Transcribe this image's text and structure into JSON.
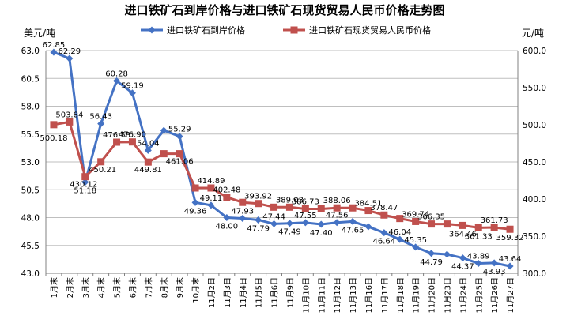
{
  "chart_data": {
    "type": "line",
    "title": "进口铁矿石到岸价格与进口铁矿石现货贸易人民币价格走势图",
    "y_left_unit": "美元/吨",
    "y_right_unit": "元/吨",
    "legend_position": "top",
    "grid": true,
    "y_left": {
      "min": 43.0,
      "max": 63.0,
      "ticks": [
        "43.0",
        "45.5",
        "48.0",
        "50.5",
        "53.0",
        "55.5",
        "58.0",
        "60.5",
        "63.0"
      ]
    },
    "y_right": {
      "min": 300.0,
      "max": 600.0,
      "ticks": [
        "300.0",
        "350.0",
        "400.0",
        "450.0",
        "500.0",
        "550.0",
        "600.0"
      ]
    },
    "categories": [
      "1月末",
      "2月末",
      "3月末",
      "4月末",
      "5月末",
      "6月末",
      "7月末",
      "8月末",
      "9月末",
      "10月末",
      "11月2日",
      "11月3日",
      "11月4日",
      "11月5日",
      "11月6日",
      "11月9日",
      "11月10日",
      "11月11日",
      "11月12日",
      "11月13日",
      "11月16日",
      "11月17日",
      "11月18日",
      "11月19日",
      "11月20日",
      "11月23日",
      "11月24日",
      "11月25日",
      "11月26日",
      "11月27日"
    ],
    "series": [
      {
        "name": "进口铁矿石到岸价格",
        "axis": "left",
        "color": "#4472C4",
        "marker": "diamond",
        "values": [
          62.85,
          62.29,
          51.18,
          56.43,
          60.28,
          59.19,
          54.04,
          55.83,
          55.29,
          49.36,
          49.11,
          48.0,
          47.93,
          47.79,
          47.44,
          47.49,
          47.55,
          47.4,
          47.56,
          47.65,
          47.18,
          46.64,
          46.04,
          45.35,
          44.79,
          44.7,
          44.37,
          43.89,
          43.93,
          43.64
        ],
        "labels": [
          "62.85",
          "62.29",
          "51.18",
          "56.43",
          "60.28",
          "59.19",
          "54.04",
          "",
          "55.29",
          "49.36",
          "49.11",
          "48.00",
          "47.93",
          "47.79",
          "47.44",
          "47.49",
          "47.55",
          "47.40",
          "47.56",
          "47.65",
          "",
          "46.64",
          "46.04",
          "45.35",
          "44.79",
          "",
          "44.37",
          "43.89",
          "43.93",
          "43.64"
        ]
      },
      {
        "name": "进口铁矿石现货贸易人民币价格",
        "axis": "right",
        "color": "#C0504D",
        "marker": "square",
        "values": [
          500.18,
          503.84,
          430.12,
          450.21,
          476.58,
          476.9,
          449.81,
          461.06,
          461.06,
          414.89,
          414.89,
          402.48,
          395.5,
          393.92,
          389.03,
          389.03,
          386.73,
          386.73,
          388.06,
          388.06,
          384.51,
          378.47,
          373.8,
          369.74,
          366.35,
          366.35,
          364.46,
          361.33,
          361.73,
          359.32
        ],
        "labels": [
          "500.18",
          "503.84",
          "430.12",
          "450.21",
          "476.58",
          "476.90",
          "449.81",
          "",
          "461.06",
          "",
          "414.89",
          "402.48",
          "",
          "393.92",
          "",
          "389.03",
          "386.73",
          "",
          "388.06",
          "",
          "384.51",
          "378.47",
          "",
          "369.74",
          "366.35",
          "",
          "364.46",
          "361.33",
          "361.73",
          "359.32"
        ]
      }
    ]
  }
}
